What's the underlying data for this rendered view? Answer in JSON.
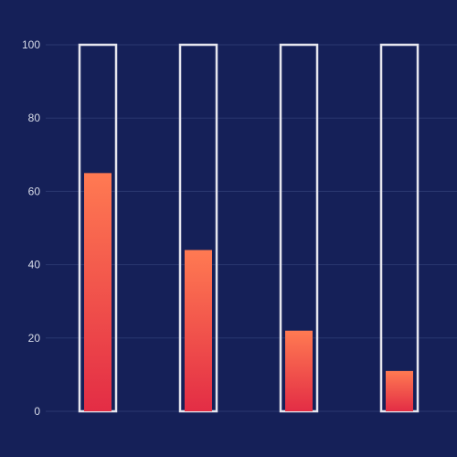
{
  "chart_data": {
    "type": "bar",
    "categories": [
      "",
      "",
      "",
      ""
    ],
    "series": [
      {
        "values": [
          65,
          44,
          22,
          11
        ]
      }
    ],
    "capacity": [
      100,
      100,
      100,
      100
    ],
    "title": "",
    "xlabel": "",
    "ylabel": "",
    "ylim": [
      0,
      100
    ],
    "y_ticks": [
      0,
      20,
      40,
      60,
      80,
      100
    ],
    "grid": true,
    "legend": "none"
  },
  "colors": {
    "background": "#152058",
    "grid": "#2a376f",
    "tick_text": "#d8dce8",
    "capacity_outline": "#e6e6ee",
    "bar_top": "#ff7a52",
    "bar_bottom": "#e32d45"
  }
}
